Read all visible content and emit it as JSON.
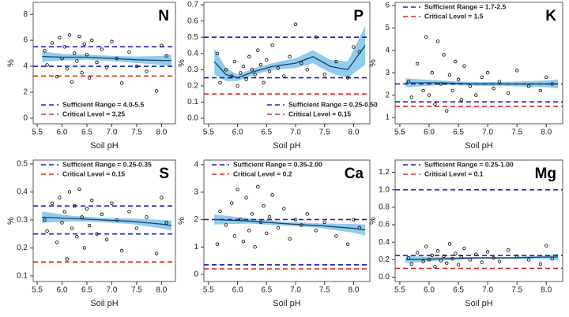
{
  "chart_data": [
    {
      "type": "scatter",
      "title": "N",
      "x_label": "Soil pH",
      "y_label": "%",
      "xlim": [
        5.42,
        8.28
      ],
      "ylim": [
        -0.43,
        8.92
      ],
      "xticks": [
        5.5,
        {
          "value": 6,
          "label": "6.0"
        },
        6.5,
        {
          "value": 7,
          "label": "7.0"
        },
        7.5,
        {
          "value": 8,
          "label": "8.0"
        }
      ],
      "yticks": [
        0,
        2,
        4,
        6,
        8
      ],
      "legend": "lower left",
      "point_color": "#000000",
      "x": [
        5.65,
        5.7,
        5.8,
        5.9,
        5.95,
        6.0,
        6.05,
        6.1,
        6.15,
        6.2,
        6.25,
        6.3,
        6.35,
        6.4,
        6.45,
        6.5,
        6.55,
        6.6,
        6.7,
        6.8,
        6.9,
        7.0,
        7.1,
        7.2,
        7.35,
        7.5,
        7.7,
        7.9,
        8.0,
        8.1
      ],
      "values": [
        5.2,
        4.1,
        5.8,
        3.2,
        6.2,
        4.6,
        5.5,
        3.8,
        6.4,
        2.8,
        5.0,
        4.4,
        6.3,
        3.5,
        5.7,
        4.9,
        3.1,
        6.0,
        4.3,
        5.3,
        3.9,
        5.9,
        4.6,
        2.7,
        5.1,
        4.0,
        3.6,
        2.1,
        5.6,
        4.8
      ],
      "fit": {
        "color": "#1f3f5f",
        "band_color": "#7cc3ea",
        "x": [
          5.6,
          6.0,
          6.5,
          7.0,
          7.5,
          8.0,
          8.2
        ],
        "values": [
          4.75,
          4.7,
          4.7,
          4.6,
          4.5,
          4.45,
          4.45
        ],
        "lower": [
          4.35,
          4.45,
          4.5,
          4.4,
          4.25,
          4.1,
          4.0
        ],
        "upper": [
          5.15,
          4.95,
          4.9,
          4.8,
          4.75,
          4.8,
          4.9
        ]
      },
      "reference_lines": [
        {
          "name": "Sufficient Range = 4.0-5.5",
          "color": "#1f1fbf",
          "values": [
            4.0,
            5.5
          ]
        },
        {
          "name": "Critical Level = 3.25",
          "color": "#e02020",
          "values": [
            3.25
          ]
        }
      ]
    },
    {
      "type": "scatter",
      "title": "P",
      "x_label": "Soil pH",
      "y_label": "%",
      "xlim": [
        5.42,
        8.28
      ],
      "ylim": [
        -0.034,
        0.715
      ],
      "xticks": [
        5.5,
        {
          "value": 6,
          "label": "6.0"
        },
        6.5,
        {
          "value": 7,
          "label": "7.0"
        },
        7.5,
        {
          "value": 8,
          "label": "8.0"
        }
      ],
      "yticks": [
        {
          "value": 0,
          "label": "0.0"
        },
        0.1,
        0.2,
        0.3,
        0.4,
        0.5,
        0.6,
        0.7
      ],
      "legend": "lower right",
      "point_color": "#000000",
      "x": [
        5.65,
        5.7,
        5.8,
        5.9,
        5.95,
        6.0,
        6.05,
        6.1,
        6.15,
        6.2,
        6.25,
        6.3,
        6.35,
        6.4,
        6.45,
        6.5,
        6.55,
        6.6,
        6.7,
        6.8,
        6.9,
        7.0,
        7.1,
        7.2,
        7.35,
        7.5,
        7.7,
        7.9,
        8.0,
        8.1
      ],
      "values": [
        0.4,
        0.22,
        0.3,
        0.26,
        0.35,
        0.2,
        0.28,
        0.32,
        0.24,
        0.38,
        0.3,
        0.27,
        0.42,
        0.33,
        0.22,
        0.36,
        0.29,
        0.45,
        0.31,
        0.26,
        0.38,
        0.58,
        0.34,
        0.3,
        0.5,
        0.27,
        0.35,
        0.25,
        0.44,
        0.41
      ],
      "fit": {
        "color": "#1f3f5f",
        "band_color": "#7cc3ea",
        "x": [
          5.6,
          5.8,
          6.0,
          6.3,
          6.6,
          7.0,
          7.3,
          7.6,
          7.9,
          8.2
        ],
        "values": [
          0.35,
          0.27,
          0.25,
          0.29,
          0.32,
          0.34,
          0.38,
          0.32,
          0.3,
          0.45
        ],
        "lower": [
          0.27,
          0.23,
          0.23,
          0.27,
          0.3,
          0.31,
          0.34,
          0.28,
          0.25,
          0.33
        ],
        "upper": [
          0.43,
          0.31,
          0.27,
          0.31,
          0.34,
          0.37,
          0.42,
          0.36,
          0.35,
          0.57
        ]
      },
      "reference_lines": [
        {
          "name": "Sufficient Range = 0.25-0.50",
          "color": "#1f1fbf",
          "values": [
            0.25,
            0.5
          ]
        },
        {
          "name": "Critical Level = 0.15",
          "color": "#e02020",
          "values": [
            0.15
          ]
        }
      ]
    },
    {
      "type": "scatter",
      "title": "K",
      "x_label": "Soil pH",
      "y_label": "%",
      "xlim": [
        5.42,
        8.28
      ],
      "ylim": [
        0.72,
        6.14
      ],
      "xticks": [
        5.5,
        {
          "value": 6,
          "label": "6.0"
        },
        6.5,
        {
          "value": 7,
          "label": "7.0"
        },
        7.5,
        {
          "value": 8,
          "label": "8.0"
        }
      ],
      "yticks": [
        1,
        2,
        3,
        4,
        5,
        6
      ],
      "legend": "upper left",
      "point_color": "#000000",
      "x": [
        5.65,
        5.7,
        5.8,
        5.9,
        5.95,
        6.0,
        6.05,
        6.1,
        6.15,
        6.2,
        6.25,
        6.3,
        6.35,
        6.4,
        6.45,
        6.5,
        6.55,
        6.6,
        6.7,
        6.8,
        6.9,
        7.0,
        7.1,
        7.2,
        7.35,
        7.5,
        7.7,
        7.9,
        8.0,
        8.1
      ],
      "values": [
        2.6,
        1.9,
        3.4,
        2.2,
        4.6,
        2.0,
        3.0,
        1.6,
        4.4,
        2.5,
        3.8,
        1.3,
        2.9,
        2.2,
        3.5,
        2.7,
        1.8,
        3.3,
        2.4,
        2.0,
        2.8,
        3.0,
        2.3,
        2.6,
        2.1,
        3.1,
        2.4,
        2.2,
        2.8,
        2.5
      ],
      "fit": {
        "color": "#1f3f5f",
        "band_color": "#7cc3ea",
        "x": [
          5.6,
          6.2,
          6.8,
          7.4,
          8.0,
          8.2
        ],
        "values": [
          2.55,
          2.55,
          2.5,
          2.5,
          2.5,
          2.5
        ],
        "lower": [
          2.35,
          2.45,
          2.42,
          2.4,
          2.35,
          2.3
        ],
        "upper": [
          2.75,
          2.65,
          2.58,
          2.6,
          2.65,
          2.7
        ]
      },
      "reference_lines": [
        {
          "name": "Sufficient Range = 1.7-2.5",
          "color": "#1f1fbf",
          "values": [
            1.7,
            2.5
          ]
        },
        {
          "name": "Critical Level = 1.5",
          "color": "#e02020",
          "values": [
            1.5
          ]
        }
      ]
    },
    {
      "type": "scatter",
      "title": "S",
      "x_label": "Soil pH",
      "y_label": "%",
      "xlim": [
        5.42,
        8.28
      ],
      "ylim": [
        0.08,
        0.514
      ],
      "xticks": [
        5.5,
        {
          "value": 6,
          "label": "6.0"
        },
        6.5,
        {
          "value": 7,
          "label": "7.0"
        },
        7.5,
        {
          "value": 8,
          "label": "8.0"
        }
      ],
      "yticks": [
        0.1,
        0.2,
        0.3,
        0.4,
        0.5
      ],
      "legend": "upper left",
      "point_color": "#000000",
      "x": [
        5.65,
        5.7,
        5.8,
        5.9,
        5.95,
        6.0,
        6.05,
        6.1,
        6.15,
        6.2,
        6.25,
        6.3,
        6.35,
        6.4,
        6.45,
        6.5,
        6.55,
        6.6,
        6.7,
        6.8,
        6.9,
        7.0,
        7.1,
        7.2,
        7.35,
        7.5,
        7.7,
        7.9,
        8.0,
        8.1
      ],
      "values": [
        0.3,
        0.26,
        0.36,
        0.22,
        0.38,
        0.29,
        0.33,
        0.16,
        0.4,
        0.27,
        0.35,
        0.24,
        0.41,
        0.31,
        0.2,
        0.34,
        0.28,
        0.37,
        0.25,
        0.32,
        0.23,
        0.36,
        0.3,
        0.19,
        0.33,
        0.27,
        0.31,
        0.18,
        0.38,
        0.29
      ],
      "fit": {
        "color": "#1f3f5f",
        "band_color": "#7cc3ea",
        "x": [
          5.6,
          6.2,
          6.8,
          7.4,
          8.0,
          8.2
        ],
        "values": [
          0.31,
          0.305,
          0.3,
          0.295,
          0.285,
          0.28
        ],
        "lower": [
          0.29,
          0.295,
          0.292,
          0.285,
          0.27,
          0.262
        ],
        "upper": [
          0.33,
          0.315,
          0.308,
          0.305,
          0.3,
          0.298
        ]
      },
      "reference_lines": [
        {
          "name": "Sufficient Range = 0.25-0.35",
          "color": "#1f1fbf",
          "values": [
            0.25,
            0.35
          ]
        },
        {
          "name": "Critical Level = 0.15",
          "color": "#e02020",
          "values": [
            0.15
          ]
        }
      ]
    },
    {
      "type": "scatter",
      "title": "Ca",
      "x_label": "Soil pH",
      "y_label": "%",
      "xlim": [
        5.42,
        8.28
      ],
      "ylim": [
        -0.26,
        4.17
      ],
      "xticks": [
        5.5,
        {
          "value": 6,
          "label": "6.0"
        },
        6.5,
        {
          "value": 7,
          "label": "7.0"
        },
        7.5,
        {
          "value": 8,
          "label": "8.0"
        }
      ],
      "yticks": [
        0,
        1,
        2,
        3,
        4
      ],
      "legend": "upper left",
      "point_color": "#000000",
      "x": [
        5.65,
        5.7,
        5.8,
        5.9,
        5.95,
        6.0,
        6.05,
        6.1,
        6.15,
        6.2,
        6.25,
        6.3,
        6.35,
        6.4,
        6.45,
        6.5,
        6.55,
        6.6,
        6.7,
        6.8,
        6.9,
        7.0,
        7.1,
        7.2,
        7.35,
        7.5,
        7.7,
        7.9,
        8.0,
        8.1
      ],
      "values": [
        1.1,
        2.3,
        1.8,
        2.6,
        1.4,
        3.1,
        2.0,
        1.2,
        2.8,
        1.6,
        2.2,
        1.0,
        3.2,
        1.9,
        2.5,
        1.5,
        2.1,
        2.9,
        1.7,
        2.4,
        1.3,
        2.0,
        1.8,
        2.2,
        1.6,
        1.9,
        1.4,
        1.1,
        2.0,
        1.7
      ],
      "fit": {
        "color": "#1f3f5f",
        "band_color": "#7cc3ea",
        "x": [
          5.6,
          6.2,
          6.8,
          7.4,
          8.0,
          8.2
        ],
        "values": [
          2.0,
          1.95,
          1.85,
          1.78,
          1.68,
          1.62
        ],
        "lower": [
          1.82,
          1.85,
          1.78,
          1.7,
          1.52,
          1.42
        ],
        "upper": [
          2.18,
          2.05,
          1.92,
          1.86,
          1.84,
          1.82
        ]
      },
      "reference_lines": [
        {
          "name": "Sufficient Range = 0.35-2.00",
          "color": "#1f1fbf",
          "values": [
            0.35,
            2.0
          ]
        },
        {
          "name": "Critical Level = 0.2",
          "color": "#e02020",
          "values": [
            0.2
          ]
        }
      ]
    },
    {
      "type": "scatter",
      "title": "Mg",
      "x_label": "Soil pH",
      "y_label": "%",
      "xlim": [
        5.42,
        8.28
      ],
      "ylim": [
        -0.05,
        1.34
      ],
      "xticks": [
        5.5,
        {
          "value": 6,
          "label": "6.0"
        },
        6.5,
        {
          "value": 7,
          "label": "7.0"
        },
        7.5,
        {
          "value": 8,
          "label": "8.0"
        }
      ],
      "yticks": [
        {
          "value": 0,
          "label": "0.0"
        },
        0.2,
        0.4,
        0.6,
        0.8,
        {
          "value": 1,
          "label": "1.0"
        },
        1.2
      ],
      "legend": "upper left",
      "point_color": "#000000",
      "x": [
        5.65,
        5.7,
        5.8,
        5.9,
        5.95,
        6.0,
        6.05,
        6.1,
        6.15,
        6.2,
        6.25,
        6.3,
        6.35,
        6.4,
        6.45,
        6.5,
        6.55,
        6.6,
        6.7,
        6.8,
        6.9,
        7.0,
        7.1,
        7.2,
        7.35,
        7.5,
        7.7,
        7.9,
        8.0,
        8.1
      ],
      "values": [
        0.22,
        0.15,
        0.28,
        0.18,
        0.35,
        0.2,
        0.25,
        0.12,
        0.3,
        0.19,
        0.24,
        0.16,
        0.38,
        0.21,
        0.27,
        0.14,
        0.23,
        0.33,
        0.2,
        0.26,
        0.17,
        0.29,
        0.22,
        0.18,
        0.31,
        0.24,
        0.2,
        0.15,
        0.36,
        0.21
      ],
      "fit": {
        "color": "#1f3f5f",
        "band_color": "#7cc3ea",
        "x": [
          5.6,
          6.2,
          6.8,
          7.4,
          8.0,
          8.2
        ],
        "values": [
          0.2,
          0.21,
          0.22,
          0.22,
          0.23,
          0.23
        ],
        "lower": [
          0.16,
          0.19,
          0.21,
          0.21,
          0.21,
          0.19
        ],
        "upper": [
          0.24,
          0.23,
          0.23,
          0.23,
          0.25,
          0.27
        ]
      },
      "reference_lines": [
        {
          "name": "Sufficient Range = 0.25-1.00",
          "color": "#1f1fbf",
          "values": [
            0.25,
            1.0
          ]
        },
        {
          "name": "Critical Level = 0.1",
          "color": "#e02020",
          "values": [
            0.1
          ]
        }
      ]
    }
  ]
}
